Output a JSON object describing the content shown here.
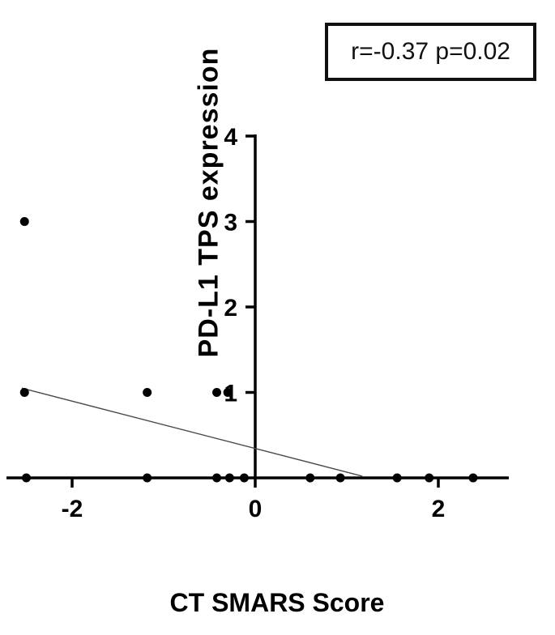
{
  "chart_data": {
    "type": "scatter",
    "title": "",
    "xlabel": "CT SMARS Score",
    "ylabel": "PD-L1 TPS expression",
    "annotation": "r=-0.37 p=0.02",
    "xlim": [
      -2.72,
      2.78
    ],
    "ylim": [
      0,
      4
    ],
    "x_ticks": [
      -2,
      0,
      2
    ],
    "y_ticks": [
      1,
      2,
      3,
      4
    ],
    "grid": false,
    "legend": false,
    "point_color": "#000000",
    "trendline_color": "#4a4a4a",
    "axis_color": "#000000",
    "points": [
      {
        "x": -2.52,
        "y": 3
      },
      {
        "x": -2.52,
        "y": 1
      },
      {
        "x": -1.18,
        "y": 1
      },
      {
        "x": -0.42,
        "y": 1
      },
      {
        "x": -0.3,
        "y": 1
      },
      {
        "x": -2.5,
        "y": 0
      },
      {
        "x": -1.18,
        "y": 0
      },
      {
        "x": -0.42,
        "y": 0
      },
      {
        "x": -0.28,
        "y": 0
      },
      {
        "x": -0.12,
        "y": 0
      },
      {
        "x": 0.6,
        "y": 0
      },
      {
        "x": 0.93,
        "y": 0
      },
      {
        "x": 1.55,
        "y": 0
      },
      {
        "x": 1.9,
        "y": 0
      },
      {
        "x": 2.38,
        "y": 0
      }
    ],
    "trendline": {
      "x1": -2.55,
      "y1": 1.05,
      "x2": 1.17,
      "y2": 0.02
    }
  }
}
